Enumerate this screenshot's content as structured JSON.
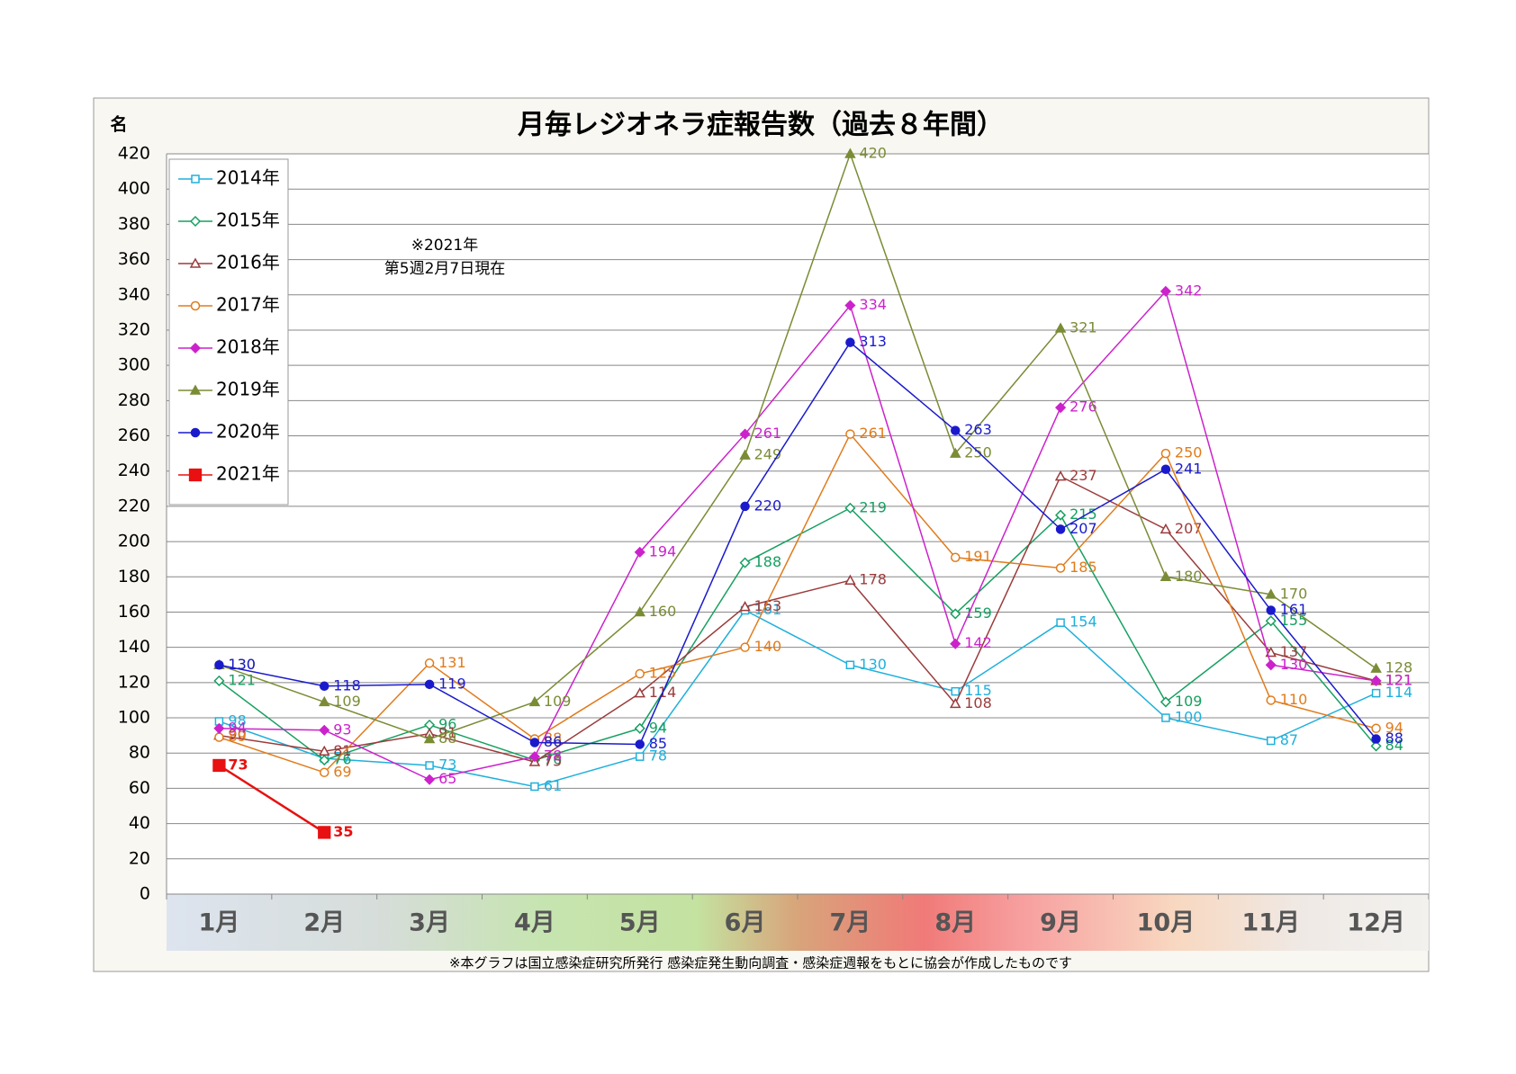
{
  "chart_data": {
    "type": "line",
    "title": "月毎レジオネラ症報告数（過去８年間）",
    "y_axis_label": "名",
    "annotation": [
      "※2021年",
      "第5週2月7日現在"
    ],
    "footnote": "※本グラフは国立感染症研究所発行 感染症発生動向調査・感染症週報をもとに協会が作成したものです",
    "categories": [
      "1月",
      "2月",
      "3月",
      "4月",
      "5月",
      "6月",
      "7月",
      "8月",
      "9月",
      "10月",
      "11月",
      "12月"
    ],
    "ylim": [
      0,
      420
    ],
    "yticks": [
      0,
      20,
      40,
      60,
      80,
      100,
      120,
      140,
      160,
      180,
      200,
      220,
      240,
      260,
      280,
      300,
      320,
      340,
      360,
      380,
      400,
      420
    ],
    "grid": true,
    "legend": "top-left",
    "series": [
      {
        "name": "2014年",
        "color": "#1fb0dc",
        "marker": "square-open",
        "values": [
          98,
          77,
          73,
          61,
          78,
          161,
          130,
          115,
          154,
          100,
          87,
          114
        ]
      },
      {
        "name": "2015年",
        "color": "#16a060",
        "marker": "diamond-open",
        "values": [
          121,
          76,
          96,
          76,
          94,
          188,
          219,
          159,
          215,
          109,
          155,
          84
        ]
      },
      {
        "name": "2016年",
        "color": "#9b3b3b",
        "marker": "triangle-open",
        "values": [
          90,
          81,
          91,
          75,
          114,
          163,
          178,
          108,
          237,
          207,
          137,
          121
        ]
      },
      {
        "name": "2017年",
        "color": "#e07b1c",
        "marker": "circle-open",
        "values": [
          89,
          69,
          131,
          88,
          125,
          140,
          261,
          191,
          185,
          250,
          110,
          94
        ]
      },
      {
        "name": "2018年",
        "color": "#cc22cc",
        "marker": "diamond",
        "values": [
          94,
          93,
          65,
          78,
          194,
          261,
          334,
          142,
          276,
          342,
          130,
          121
        ]
      },
      {
        "name": "2019年",
        "color": "#7a8c35",
        "marker": "triangle",
        "values": [
          130,
          109,
          88,
          109,
          160,
          249,
          420,
          250,
          321,
          180,
          170,
          128
        ]
      },
      {
        "name": "2020年",
        "color": "#1a1acc",
        "marker": "circle",
        "values": [
          130,
          118,
          119,
          86,
          85,
          220,
          313,
          263,
          207,
          241,
          161,
          88
        ]
      },
      {
        "name": "2021年",
        "color": "#e81010",
        "marker": "square",
        "values": [
          73,
          35,
          null,
          null,
          null,
          null,
          null,
          null,
          null,
          null,
          null,
          null
        ]
      }
    ]
  }
}
